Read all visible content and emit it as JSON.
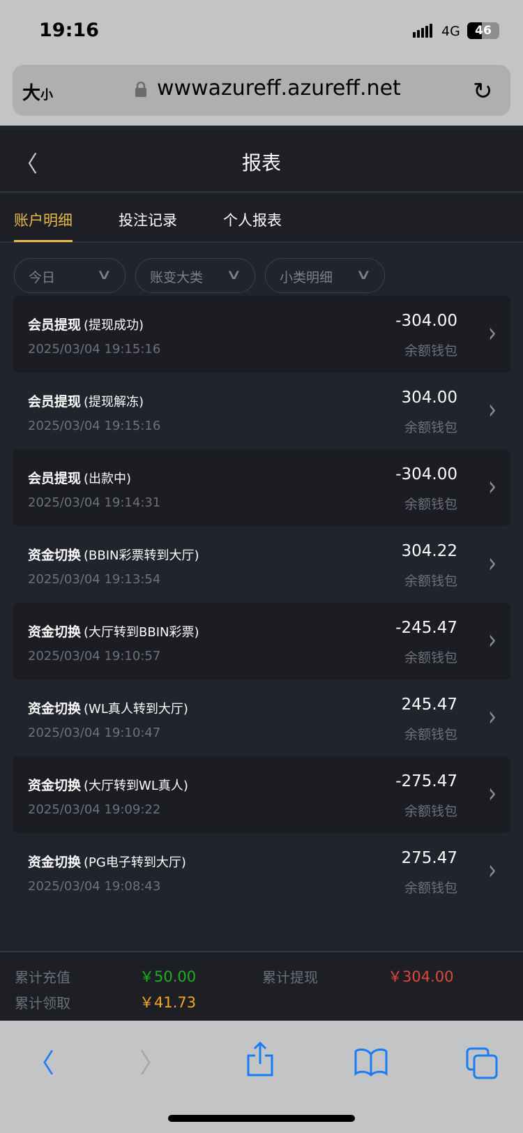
{
  "status": {
    "time": "19:16",
    "network": "4G",
    "battery": "46",
    "battery_level": 0.46
  },
  "browser": {
    "text_size": "大",
    "text_size_small": "小",
    "url": "wwwazureff.azureff.net"
  },
  "header": {
    "title": "报表"
  },
  "tabs": [
    {
      "label": "账户明细",
      "active": true
    },
    {
      "label": "投注记录"
    },
    {
      "label": "个人报表"
    }
  ],
  "filters": [
    {
      "label": "今日"
    },
    {
      "label": "账变大类"
    },
    {
      "label": "小类明细"
    }
  ],
  "records": [
    {
      "type": "会员提现",
      "detail": "(提现成功)",
      "time": "2025/03/04 19:15:16",
      "amount": "-304.00",
      "wallet": "余额钱包"
    },
    {
      "type": "会员提现",
      "detail": "(提现解冻)",
      "time": "2025/03/04 19:15:16",
      "amount": "304.00",
      "wallet": "余额钱包"
    },
    {
      "type": "会员提现",
      "detail": "(出款中)",
      "time": "2025/03/04 19:14:31",
      "amount": "-304.00",
      "wallet": "余额钱包"
    },
    {
      "type": "资金切换",
      "detail": "(BBIN彩票转到大厅)",
      "time": "2025/03/04 19:13:54",
      "amount": "304.22",
      "wallet": "余额钱包"
    },
    {
      "type": "资金切换",
      "detail": "(大厅转到BBIN彩票)",
      "time": "2025/03/04 19:10:57",
      "amount": "-245.47",
      "wallet": "余额钱包"
    },
    {
      "type": "资金切换",
      "detail": "(WL真人转到大厅)",
      "time": "2025/03/04 19:10:47",
      "amount": "245.47",
      "wallet": "余额钱包"
    },
    {
      "type": "资金切换",
      "detail": "(大厅转到WL真人)",
      "time": "2025/03/04 19:09:22",
      "amount": "-275.47",
      "wallet": "余额钱包"
    },
    {
      "type": "资金切换",
      "detail": "(PG电子转到大厅)",
      "time": "2025/03/04 19:08:43",
      "amount": "275.47",
      "wallet": "余额钱包"
    }
  ],
  "summary": {
    "deposit_label": "累计充值",
    "deposit_value": "￥50.00",
    "deposit_color": "#1db11d",
    "withdraw_label": "累计提现",
    "withdraw_value": "￥304.00",
    "withdraw_color": "#e2463b",
    "claim_label": "累计领取",
    "claim_value": "￥41.73",
    "claim_color": "#f3a81b"
  },
  "colors": {
    "accent": "#e8b94b",
    "ios_blue": "#1a7cf5"
  }
}
